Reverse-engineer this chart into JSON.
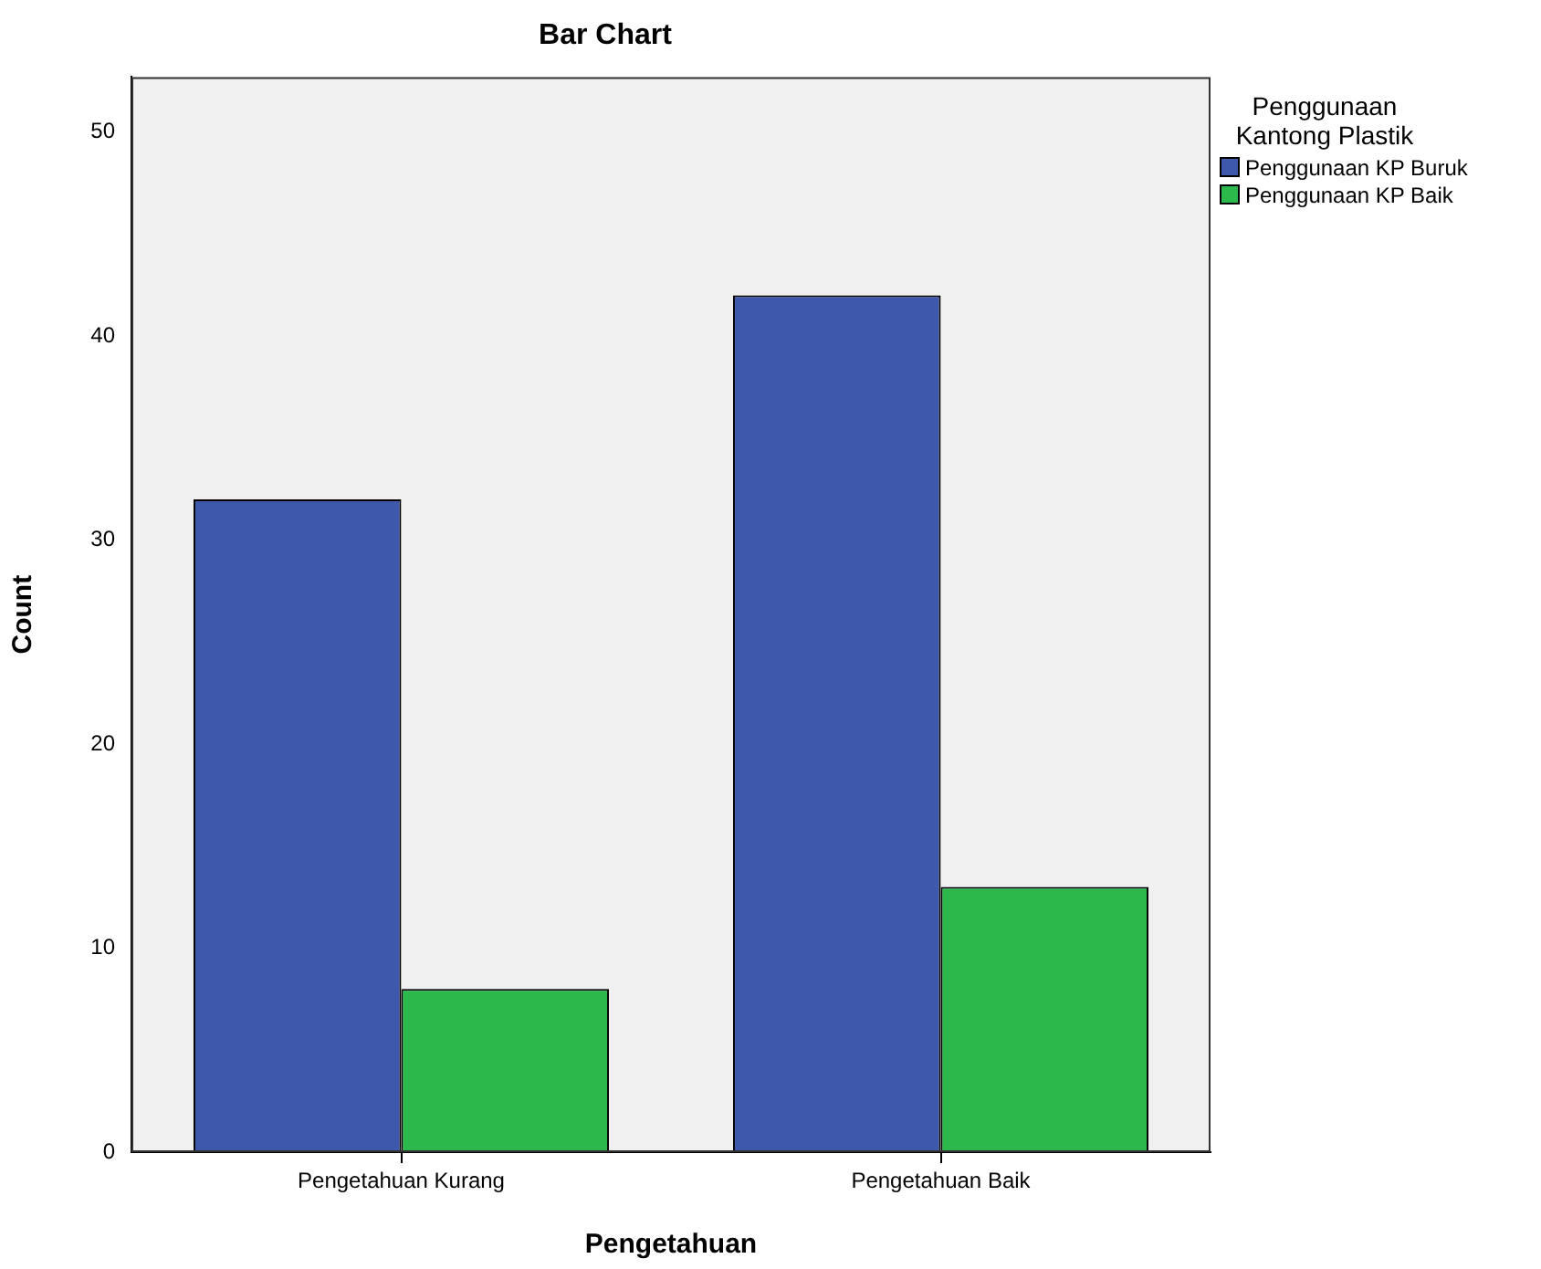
{
  "chart_data": {
    "type": "bar",
    "title": "Bar Chart",
    "xlabel": "Pengetahuan",
    "ylabel": "Count",
    "legend_title": "Penggunaan Kantong Plastik",
    "categories": [
      "Pengetahuan Kurang",
      "Pengetahuan Baik"
    ],
    "series": [
      {
        "name": "Penggunaan KP Buruk",
        "color": "#3e58ac",
        "values": [
          32,
          42
        ]
      },
      {
        "name": "Penggunaan KP Baik",
        "color": "#2db84b",
        "values": [
          8,
          13
        ]
      }
    ],
    "ylim": [
      0,
      52.7
    ],
    "yticks": [
      0,
      10,
      20,
      30,
      40,
      50
    ],
    "grid": false,
    "legend": "right"
  }
}
